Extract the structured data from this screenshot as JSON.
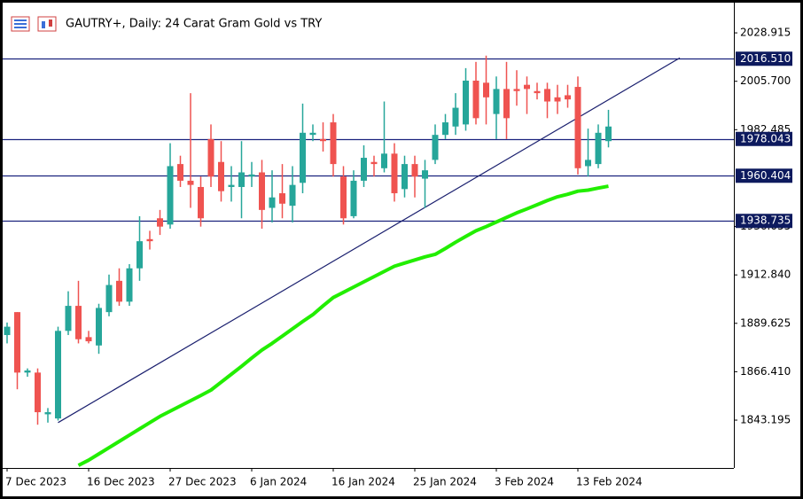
{
  "chart_data": {
    "type": "candlestick",
    "title": "GAUTRY+, Daily:  24 Carat Gram Gold vs TRY",
    "categories": [
      "7 Dec 2023",
      null,
      null,
      null,
      null,
      null,
      null,
      null,
      "16 Dec 2023",
      null,
      null,
      null,
      null,
      null,
      null,
      null,
      "27 Dec 2023",
      null,
      null,
      null,
      null,
      null,
      null,
      null,
      "6 Jan 2024",
      null,
      null,
      null,
      null,
      null,
      null,
      null,
      "16 Jan 2024",
      null,
      null,
      null,
      null,
      null,
      null,
      null,
      "25 Jan 2024",
      null,
      null,
      null,
      null,
      null,
      null,
      null,
      "3 Feb 2024",
      null,
      null,
      null,
      null,
      null,
      null,
      null,
      "13 Feb 2024",
      null,
      null,
      null
    ],
    "open": [
      1884,
      1895,
      1866,
      1866,
      1846,
      1844,
      1886,
      1898,
      1883,
      1879,
      1895,
      1910,
      1900,
      1916,
      1930,
      1940,
      1937,
      1966,
      1958,
      1955,
      1978,
      1967,
      1955,
      1955,
      1960,
      1962,
      1945,
      1952,
      1946,
      1957,
      1980,
      1978,
      1986,
      1960,
      1941,
      1958,
      1967,
      1964,
      1971,
      1954,
      1966,
      1959,
      1968,
      1980,
      1984,
      1985,
      2006,
      2005,
      1990,
      2002,
      2002,
      2004,
      2001,
      2002,
      1998,
      1999,
      2003,
      1965,
      1966,
      1977
    ],
    "high": [
      1890,
      1895,
      1868,
      1868,
      1849,
      1888,
      1905,
      1910,
      1886,
      1899,
      1913,
      1916,
      1918,
      1941,
      1934,
      1944,
      1976,
      1970,
      2000,
      1960,
      1985,
      1977,
      1965,
      1977,
      1967,
      1968,
      1963,
      1966,
      1965,
      1995,
      1985,
      1986,
      1990,
      1965,
      1963,
      1975,
      1970,
      1996,
      1976,
      1970,
      1970,
      1968,
      1985,
      1990,
      2000,
      2012,
      2015,
      2018,
      2008,
      2015,
      2011,
      2008,
      2005,
      2005,
      2004,
      2004,
      2008,
      1983,
      1985,
      1992
    ],
    "low": [
      1880,
      1858,
      1864,
      1841,
      1842,
      1843,
      1884,
      1880,
      1880,
      1875,
      1893,
      1898,
      1898,
      1910,
      1925,
      1932,
      1935,
      1955,
      1945,
      1936,
      1955,
      1948,
      1948,
      1940,
      1955,
      1935,
      1938,
      1940,
      1938,
      1952,
      1977,
      1972,
      1960,
      1937,
      1940,
      1955,
      1960,
      1962,
      1948,
      1950,
      1950,
      1945,
      1966,
      1978,
      1980,
      1982,
      1985,
      1985,
      1978,
      1978,
      1994,
      1990,
      1997,
      1988,
      1990,
      1993,
      1961,
      1960,
      1964,
      1974
    ],
    "close": [
      1888,
      1866,
      1867,
      1847,
      1847,
      1886,
      1898,
      1882,
      1881,
      1897,
      1908,
      1900,
      1916,
      1929,
      1929,
      1936,
      1965,
      1958,
      1956,
      1940,
      1960,
      1953,
      1956,
      1962,
      1961,
      1944,
      1950,
      1947,
      1956,
      1981,
      1981,
      1977,
      1966,
      1940,
      1958,
      1969,
      1966,
      1971,
      1952,
      1966,
      1960,
      1963,
      1980,
      1986,
      1993,
      2006,
      1988,
      1998,
      2002,
      1988,
      2001,
      2002,
      2000,
      1996,
      1996,
      1997,
      1964,
      1968,
      1981,
      1984
    ],
    "up_color": "#26a69a",
    "down_color": "#ef5350",
    "moving_average": {
      "color": "#22ee00",
      "values": [
        null,
        null,
        null,
        null,
        null,
        null,
        null,
        1821.5,
        1824,
        1827,
        1830,
        1833,
        1836,
        1839,
        1842,
        1845,
        1847.5,
        1850,
        1852.5,
        1855,
        1857.6,
        1861.4,
        1865.2,
        1869,
        1873,
        1876.8,
        1880,
        1883.5,
        1887,
        1890.5,
        1893.8,
        1898,
        1902,
        1904.5,
        1907,
        1909.5,
        1912,
        1914.5,
        1917,
        1918.5,
        1920,
        1921.5,
        1922.7,
        1925.5,
        1928.5,
        1931.3,
        1934,
        1936,
        1938.2,
        1940.4,
        1942.6,
        1944.5,
        1946.5,
        1948.5,
        1950.3,
        1951.5,
        1953,
        1953.5,
        1954.5,
        1955.4
      ]
    },
    "trendline": {
      "color": "#1a1f6e",
      "x": [
        5,
        66
      ],
      "y": [
        1842,
        2016.9
      ]
    },
    "hlines_color": "#1a237e",
    "hlines": [
      {
        "value": 2016.51,
        "label": "2016.510"
      },
      {
        "value": 1978.043,
        "label": "1978.043"
      },
      {
        "value": 1960.404,
        "label": "1960.404"
      },
      {
        "value": 1938.735,
        "label": "1938.735"
      }
    ],
    "ylim": [
      1820.25,
      2043.4
    ],
    "yticks": [
      2028.915,
      {
        "value": 2005.7,
        "label": "2005.700"
      },
      1982.485,
      1936.055,
      {
        "value": 1912.84,
        "label": "1912.840"
      },
      1889.625,
      {
        "value": 1866.41,
        "label": "1866.410"
      },
      1843.195
    ]
  }
}
